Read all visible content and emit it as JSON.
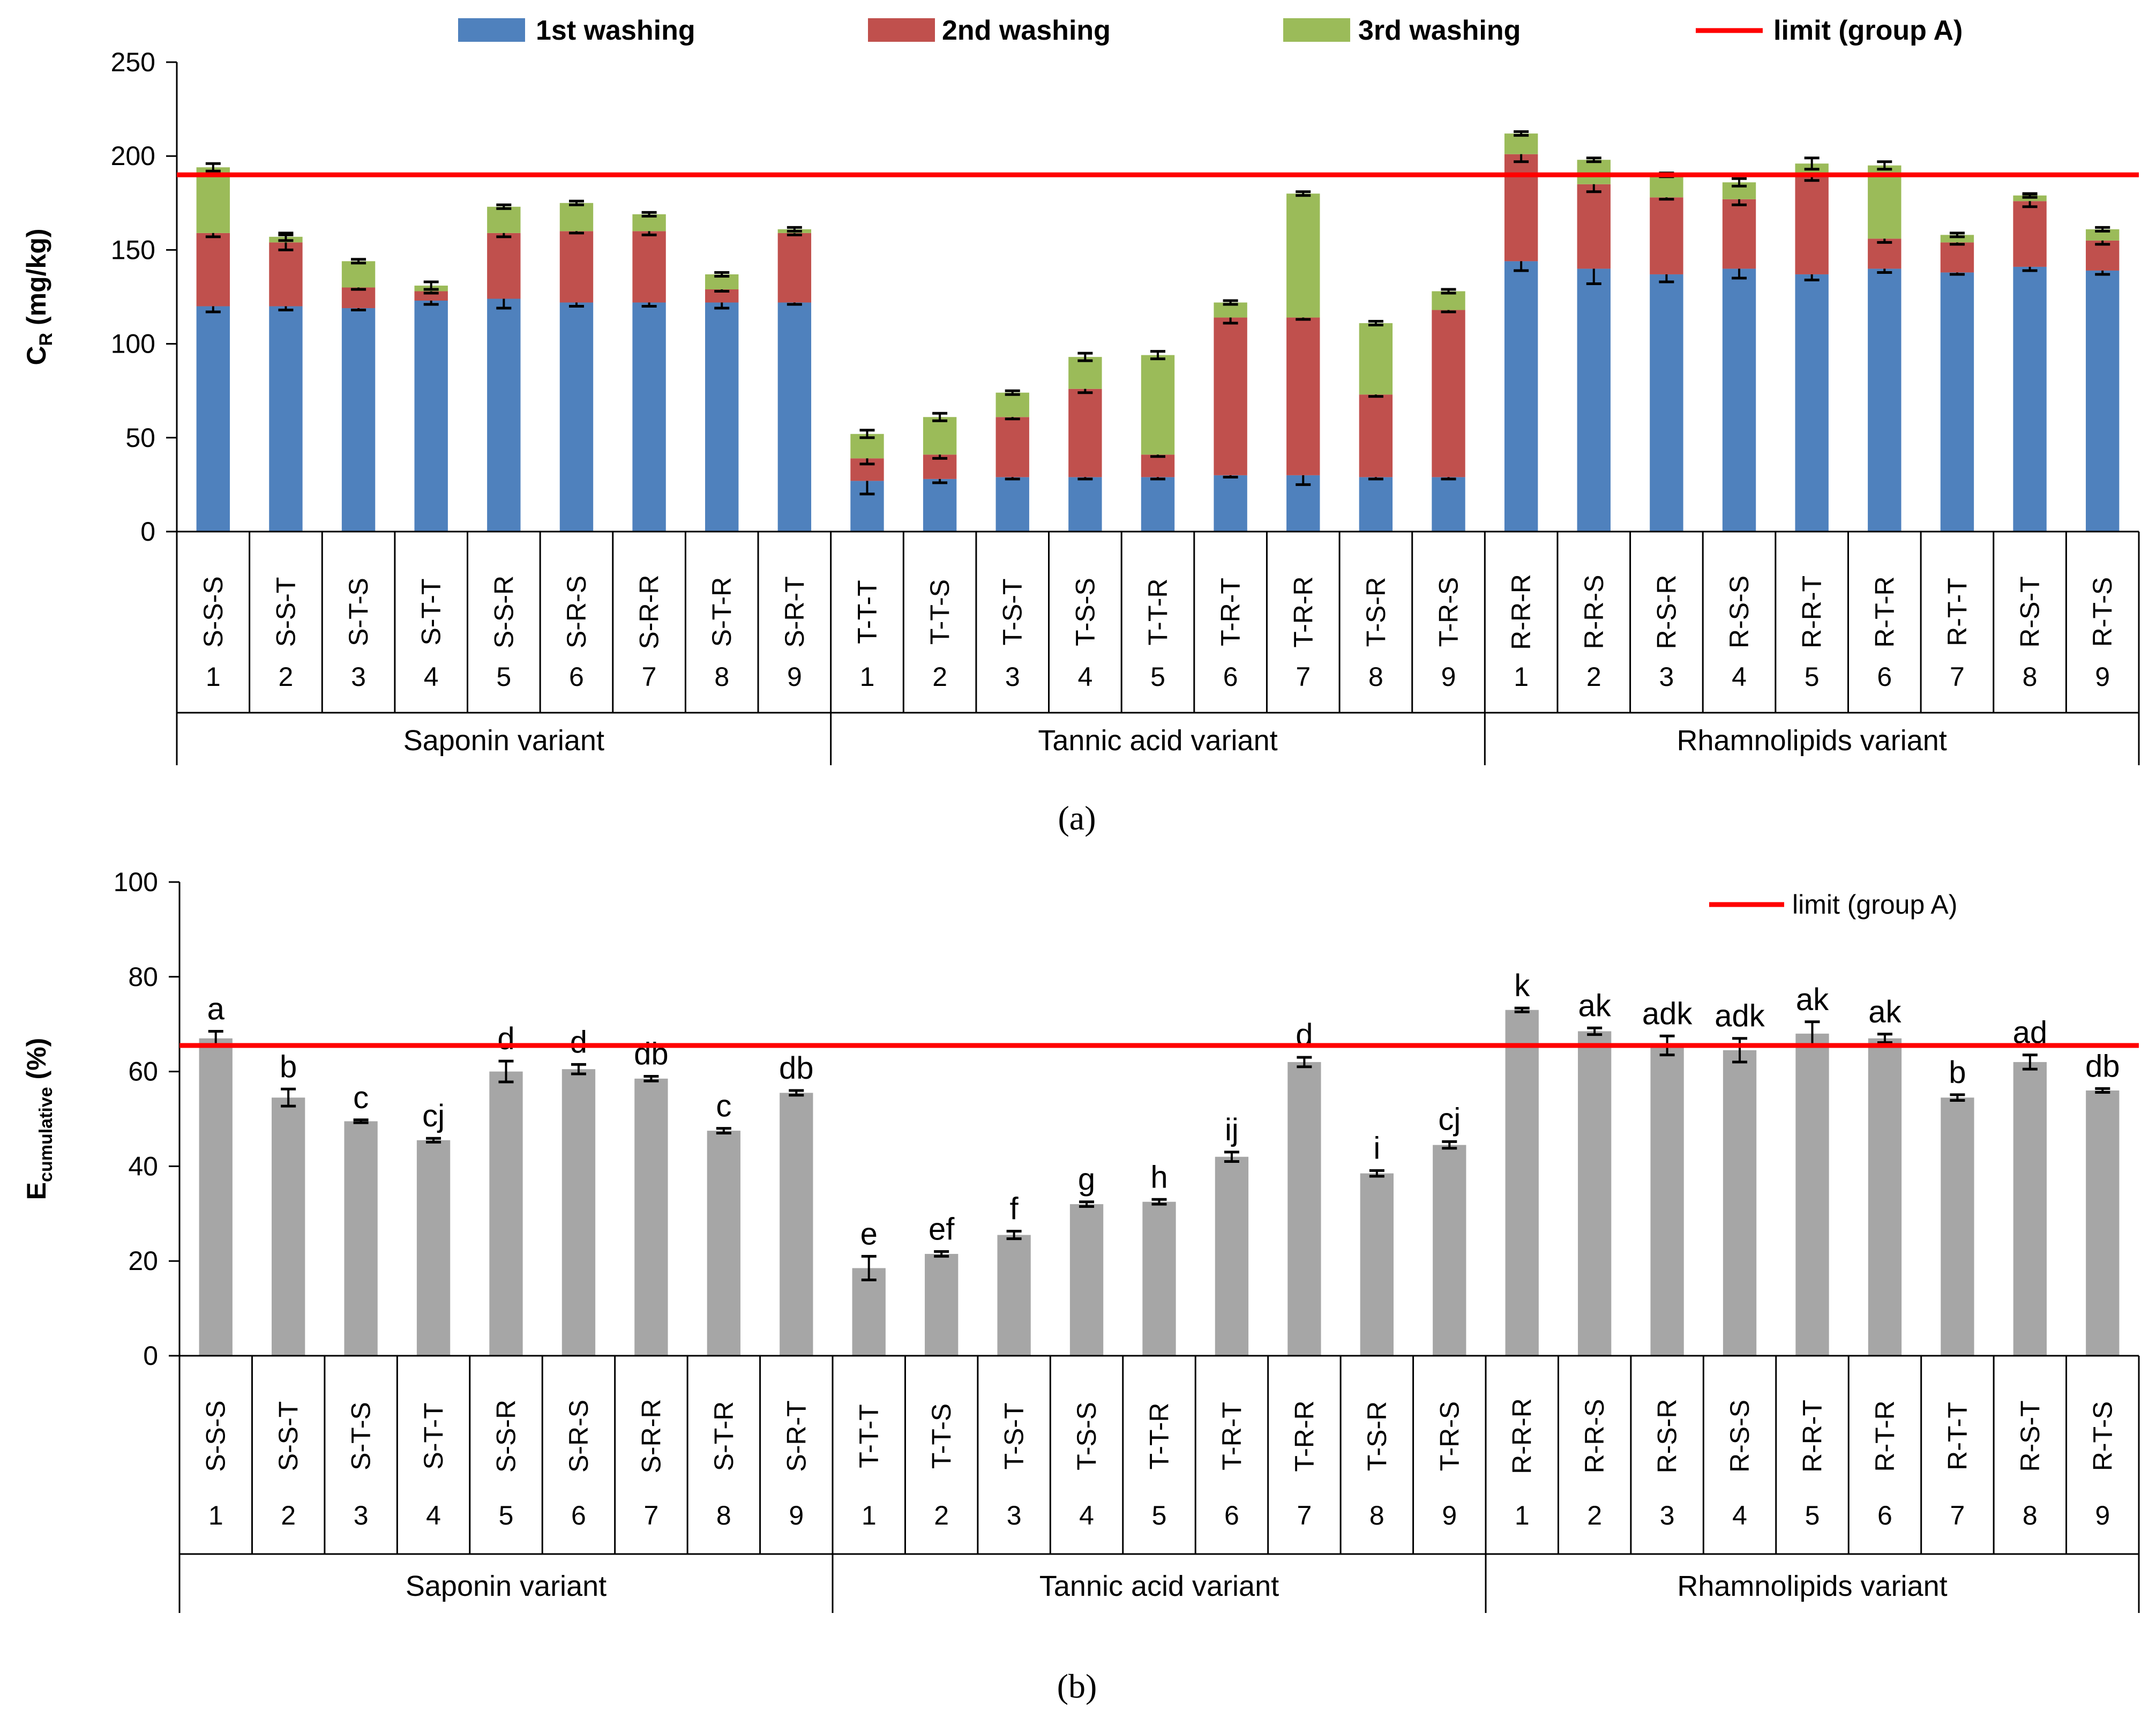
{
  "chart_data": [
    {
      "panel_label": "(a)",
      "type": "bar",
      "stacked": true,
      "ylabel": "C",
      "ylabel_sub": "R",
      "ylabel_unit": " (mg/kg)",
      "ylim": [
        0,
        250
      ],
      "yticks": [
        0,
        50,
        100,
        150,
        200,
        250
      ],
      "grid": false,
      "legend_position": "top",
      "categories": [
        "S-S-S",
        "S-S-T",
        "S-T-S",
        "S-T-T",
        "S-S-R",
        "S-R-S",
        "S-R-R",
        "S-T-R",
        "S-R-T",
        "T-T-T",
        "T-T-S",
        "T-S-T",
        "T-S-S",
        "T-T-R",
        "T-R-T",
        "T-R-R",
        "T-S-R",
        "T-R-S",
        "R-R-R",
        "R-R-S",
        "R-S-R",
        "R-S-S",
        "R-R-T",
        "R-T-R",
        "R-T-T",
        "R-S-T",
        "R-T-S"
      ],
      "numbers": [
        "1",
        "2",
        "3",
        "4",
        "5",
        "6",
        "7",
        "8",
        "9",
        "1",
        "2",
        "3",
        "4",
        "5",
        "6",
        "7",
        "8",
        "9",
        "1",
        "2",
        "3",
        "4",
        "5",
        "6",
        "7",
        "8",
        "9"
      ],
      "groups": [
        {
          "name": "Saponin variant",
          "count": 9
        },
        {
          "name": "Tannic acid variant",
          "count": 9
        },
        {
          "name": "Rhamnolipids variant",
          "count": 9
        }
      ],
      "series": [
        {
          "name": "1st washing",
          "color": "#4f81bd",
          "values": [
            120,
            120,
            119,
            123,
            124,
            122,
            122,
            122,
            122,
            27,
            28,
            29,
            29,
            29,
            30,
            30,
            29,
            29,
            144,
            140,
            137,
            140,
            137,
            140,
            138,
            141,
            139
          ],
          "errors": [
            3,
            2,
            1,
            2,
            5,
            2,
            2,
            3,
            1,
            7,
            2,
            1,
            1,
            1,
            1,
            5,
            1,
            1,
            5,
            8,
            4,
            5,
            3,
            2,
            1,
            2,
            2
          ]
        },
        {
          "name": "2nd washing",
          "color": "#c0504d",
          "values": [
            39,
            34,
            11,
            5,
            35,
            38,
            38,
            7,
            37,
            12,
            13,
            32,
            47,
            12,
            84,
            84,
            44,
            89,
            57,
            45,
            41,
            37,
            53,
            16,
            16,
            35,
            16
          ],
          "errors": [
            2,
            4,
            1,
            1,
            2,
            1,
            2,
            1,
            1,
            3,
            2,
            1,
            2,
            1,
            3,
            1,
            1,
            1,
            4,
            4,
            1,
            3,
            3,
            2,
            1,
            3,
            2
          ]
        },
        {
          "name": "3rd washing",
          "color": "#9bbb59",
          "values": [
            35,
            3,
            14,
            3,
            14,
            15,
            9,
            8,
            2,
            13,
            20,
            13,
            17,
            53,
            8,
            66,
            38,
            10,
            11,
            13,
            12,
            9,
            6,
            39,
            4,
            3,
            6
          ],
          "errors": [
            2,
            2,
            1,
            2,
            1,
            1,
            1,
            1,
            1,
            2,
            2,
            1,
            2,
            2,
            1,
            1,
            1,
            1,
            1,
            1,
            1,
            2,
            3,
            2,
            1,
            1,
            1
          ]
        }
      ],
      "reference_line": {
        "name": "limit (group A)",
        "value": 190,
        "color": "#ff0000"
      }
    },
    {
      "panel_label": "(b)",
      "type": "bar",
      "ylabel": "E",
      "ylabel_sub": "cumulative",
      "ylabel_unit": " (%)",
      "ylim": [
        0,
        100
      ],
      "yticks": [
        0,
        20,
        40,
        60,
        80,
        100
      ],
      "grid": false,
      "legend_position": "top-right",
      "categories": [
        "S-S-S",
        "S-S-T",
        "S-T-S",
        "S-T-T",
        "S-S-R",
        "S-R-S",
        "S-R-R",
        "S-T-R",
        "S-R-T",
        "T-T-T",
        "T-T-S",
        "T-S-T",
        "T-S-S",
        "T-T-R",
        "T-R-T",
        "T-R-R",
        "T-S-R",
        "T-R-S",
        "R-R-R",
        "R-R-S",
        "R-S-R",
        "R-S-S",
        "R-R-T",
        "R-T-R",
        "R-T-T",
        "R-S-T",
        "R-T-S"
      ],
      "numbers": [
        "1",
        "2",
        "3",
        "4",
        "5",
        "6",
        "7",
        "8",
        "9",
        "1",
        "2",
        "3",
        "4",
        "5",
        "6",
        "7",
        "8",
        "9",
        "1",
        "2",
        "3",
        "4",
        "5",
        "6",
        "7",
        "8",
        "9"
      ],
      "groups": [
        {
          "name": "Saponin variant",
          "count": 9
        },
        {
          "name": "Tannic acid variant",
          "count": 9
        },
        {
          "name": "Rhamnolipids variant",
          "count": 9
        }
      ],
      "series": [
        {
          "color": "#a6a6a6",
          "values": [
            67,
            54.5,
            49.5,
            45.5,
            60,
            60.5,
            58.5,
            47.5,
            55.5,
            18.5,
            21.5,
            25.5,
            32,
            32.5,
            42,
            62,
            38.5,
            44.5,
            73,
            68.5,
            65.5,
            64.5,
            68,
            67,
            54.5,
            62,
            56
          ],
          "errors": [
            1.5,
            1.8,
            0.3,
            0.4,
            2.2,
            1,
            0.5,
            0.5,
            0.5,
            2.5,
            0.5,
            0.8,
            0.5,
            0.5,
            1,
            1,
            0.6,
            0.7,
            0.4,
            0.7,
            2,
            2.5,
            2.5,
            0.9,
            0.6,
            1.5,
            0.4
          ],
          "data_labels": [
            "a",
            "b",
            "c",
            "cj",
            "d",
            "d",
            "db",
            "c",
            "db",
            "e",
            "ef",
            "f",
            "g",
            "h",
            "ij",
            "d",
            "i",
            "cj",
            "k",
            "ak",
            "adk",
            "adk",
            "ak",
            "ak",
            "b",
            "ad",
            "db"
          ]
        }
      ],
      "reference_line": {
        "name": "limit (group A)",
        "value": 65.5,
        "color": "#ff0000"
      }
    }
  ]
}
